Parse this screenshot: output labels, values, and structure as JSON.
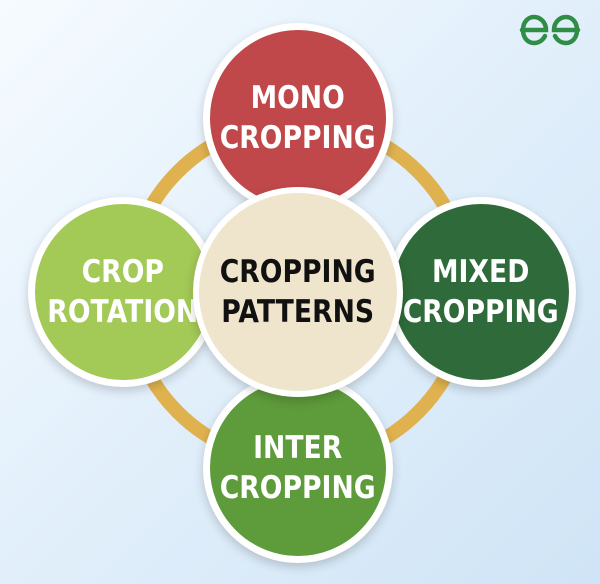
{
  "logo": {
    "name": "gfg-logo-icon",
    "color": "#2f8d46"
  },
  "ring_color": "#e0b24f",
  "center": {
    "lines": [
      "CROPPING",
      "PATTERNS"
    ],
    "fill": "#efe4cc",
    "text_color": "#111111"
  },
  "nodes": [
    {
      "id": "mono",
      "lines": [
        "MONO",
        "CROPPING"
      ],
      "fill": "#c0484a",
      "text_color": "#ffffff"
    },
    {
      "id": "rotation",
      "lines": [
        "CROP",
        "ROTATION"
      ],
      "fill": "#a3c957",
      "text_color": "#ffffff"
    },
    {
      "id": "mixed",
      "lines": [
        "MIXED",
        "CROPPING"
      ],
      "fill": "#2f6b3a",
      "text_color": "#ffffff"
    },
    {
      "id": "inter",
      "lines": [
        "INTER",
        "CROPPING"
      ],
      "fill": "#5e9b3b",
      "text_color": "#ffffff"
    }
  ]
}
